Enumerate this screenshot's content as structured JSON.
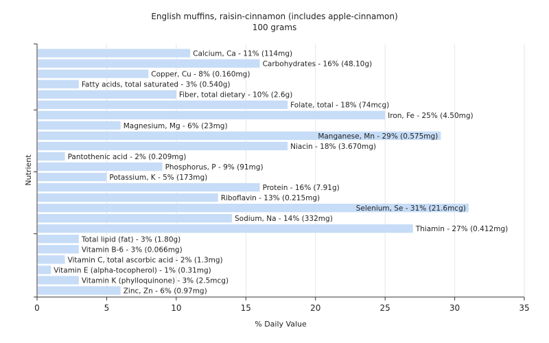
{
  "chart_data": {
    "type": "bar",
    "orientation": "horizontal",
    "title": "English muffins, raisin-cinnamon (includes apple-cinnamon)",
    "subtitle": "100 grams",
    "xlabel": "% Daily Value",
    "ylabel": "Nutrient",
    "xlim": [
      0,
      35
    ],
    "xticks": [
      0,
      5,
      10,
      15,
      20,
      25,
      30,
      35
    ],
    "grid": true,
    "bar_color": "#c6dcf7",
    "categories": [
      "Calcium, Ca - 11% (114mg)",
      "Carbohydrates - 16% (48.10g)",
      "Copper, Cu - 8% (0.160mg)",
      "Fatty acids, total saturated - 3% (0.540g)",
      "Fiber, total dietary - 10% (2.6g)",
      "Folate, total - 18% (74mcg)",
      "Iron, Fe - 25% (4.50mg)",
      "Magnesium, Mg - 6% (23mg)",
      "Manganese, Mn - 29% (0.575mg)",
      "Niacin - 18% (3.670mg)",
      "Pantothenic acid - 2% (0.209mg)",
      "Phosphorus, P - 9% (91mg)",
      "Potassium, K - 5% (173mg)",
      "Protein - 16% (7.91g)",
      "Riboflavin - 13% (0.215mg)",
      "Selenium, Se - 31% (21.6mcg)",
      "Sodium, Na - 14% (332mg)",
      "Thiamin - 27% (0.412mg)",
      "Total lipid (fat) - 3% (1.80g)",
      "Vitamin B-6 - 3% (0.066mg)",
      "Vitamin C, total ascorbic acid - 2% (1.3mg)",
      "Vitamin E (alpha-tocopherol) - 1% (0.31mg)",
      "Vitamin K (phylloquinone) - 3% (2.5mcg)",
      "Zinc, Zn - 6% (0.97mg)"
    ],
    "values": [
      11,
      16,
      8,
      3,
      10,
      18,
      25,
      6,
      29,
      18,
      2,
      9,
      5,
      16,
      13,
      31,
      14,
      27,
      3,
      3,
      2,
      1,
      3,
      6
    ]
  }
}
